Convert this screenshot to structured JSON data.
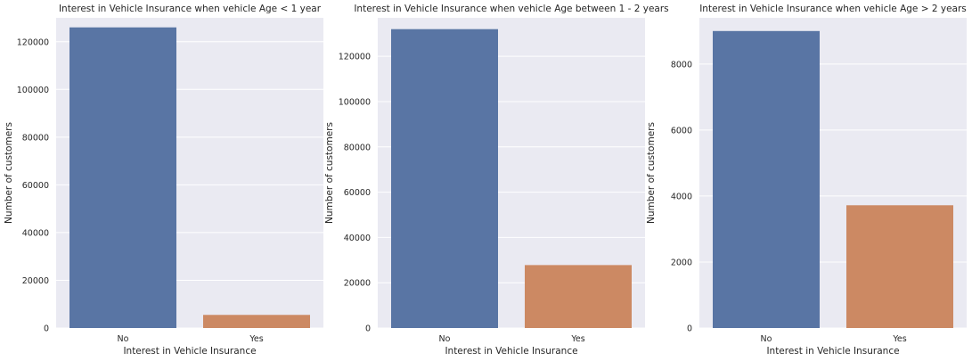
{
  "chart_data": [
    {
      "type": "bar",
      "title": "Interest in Vehicle Insurance when vehicle Age < 1 year",
      "xlabel": "Interest in Vehicle Insurance",
      "ylabel": "Number of customers",
      "categories": [
        "No",
        "Yes"
      ],
      "values": [
        126000,
        5500
      ],
      "ylim": [
        0,
        130000
      ],
      "yticks": [
        0,
        20000,
        40000,
        60000,
        80000,
        100000,
        120000
      ],
      "grid": true,
      "colors": [
        "#5975a4",
        "#cc8963"
      ]
    },
    {
      "type": "bar",
      "title": "Interest in Vehicle Insurance when vehicle Age between 1 - 2 years",
      "xlabel": "Interest in Vehicle Insurance",
      "ylabel": "Number of customers",
      "categories": [
        "No",
        "Yes"
      ],
      "values": [
        132000,
        27800
      ],
      "ylim": [
        0,
        137000
      ],
      "yticks": [
        0,
        20000,
        40000,
        60000,
        80000,
        100000,
        120000
      ],
      "grid": true,
      "colors": [
        "#5975a4",
        "#cc8963"
      ]
    },
    {
      "type": "bar",
      "title": "Interest in Vehicle Insurance when vehicle Age > 2 years",
      "xlabel": "Interest in Vehicle Insurance",
      "ylabel": "Number of customers",
      "categories": [
        "No",
        "Yes"
      ],
      "values": [
        9000,
        3720
      ],
      "ylim": [
        0,
        9400
      ],
      "yticks": [
        0,
        2000,
        4000,
        6000,
        8000
      ],
      "grid": true,
      "colors": [
        "#5975a4",
        "#cc8963"
      ]
    }
  ]
}
